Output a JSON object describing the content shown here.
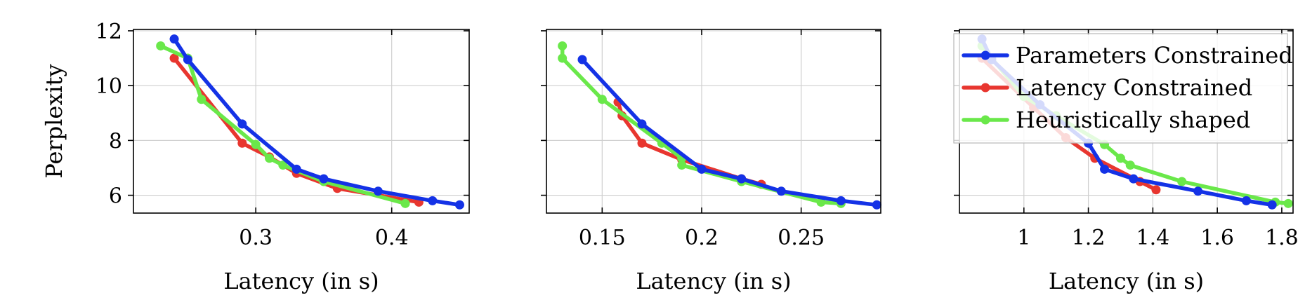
{
  "chart_data": [
    {
      "type": "line",
      "xlabel": "Latency (in s)",
      "ylabel": "Perplexity",
      "xlim": [
        0.21,
        0.457
      ],
      "ylim": [
        5.35,
        12.05
      ],
      "xticks": [
        0.3,
        0.4
      ],
      "xtick_labels": [
        "0.3",
        "0.4"
      ],
      "yticks": [
        6,
        8,
        10,
        12
      ],
      "ytick_labels": [
        "6",
        "8",
        "10",
        "12"
      ],
      "grid": true,
      "series": [
        {
          "name": "Latency Constrained",
          "color": "#e8362f",
          "x": [
            0.24,
            0.29,
            0.31,
            0.33,
            0.36,
            0.42
          ],
          "y": [
            11.0,
            7.9,
            7.4,
            6.8,
            6.25,
            5.75
          ]
        },
        {
          "name": "Heuristically shaped",
          "color": "#6ae84a",
          "x": [
            0.23,
            0.25,
            0.26,
            0.3,
            0.31,
            0.32,
            0.35,
            0.41
          ],
          "y": [
            11.45,
            11.0,
            9.5,
            7.85,
            7.35,
            7.1,
            6.5,
            5.7
          ]
        },
        {
          "name": "Parameters Constrained",
          "color": "#1432e6",
          "x": [
            0.24,
            0.25,
            0.29,
            0.33,
            0.35,
            0.39,
            0.43,
            0.45
          ],
          "y": [
            11.7,
            10.95,
            8.6,
            6.95,
            6.6,
            6.15,
            5.8,
            5.65
          ]
        }
      ]
    },
    {
      "type": "line",
      "xlabel": "Latency (in s)",
      "ylabel": "",
      "xlim": [
        0.122,
        0.29
      ],
      "ylim": [
        5.35,
        12.05
      ],
      "xticks": [
        0.15,
        0.2,
        0.25
      ],
      "xtick_labels": [
        "0.15",
        "0.2",
        "0.25"
      ],
      "yticks": [
        6,
        8,
        10,
        12
      ],
      "ytick_labels": [],
      "grid": true,
      "series": [
        {
          "name": "Latency Constrained",
          "color": "#e8362f",
          "x": [
            0.158,
            0.16,
            0.17,
            0.19,
            0.22,
            0.23
          ],
          "y": [
            9.4,
            8.9,
            7.9,
            7.3,
            6.6,
            6.4
          ]
        },
        {
          "name": "Heuristically shaped",
          "color": "#6ae84a",
          "x": [
            0.13,
            0.13,
            0.15,
            0.18,
            0.19,
            0.19,
            0.22,
            0.26,
            0.27
          ],
          "y": [
            11.45,
            11.0,
            9.5,
            7.9,
            7.35,
            7.1,
            6.5,
            5.75,
            5.7
          ]
        },
        {
          "name": "Parameters Constrained",
          "color": "#1432e6",
          "x": [
            0.14,
            0.17,
            0.2,
            0.22,
            0.24,
            0.27,
            0.288
          ],
          "y": [
            10.95,
            8.6,
            6.95,
            6.6,
            6.15,
            5.8,
            5.65
          ]
        }
      ]
    },
    {
      "type": "line",
      "xlabel": "Latency (in s)",
      "ylabel": "",
      "xlim": [
        0.8,
        1.835
      ],
      "ylim": [
        5.35,
        12.05
      ],
      "xticks": [
        1.0,
        1.2,
        1.4,
        1.6,
        1.8
      ],
      "xtick_labels": [
        "1",
        "1.2",
        "1.4",
        "1.6",
        "1.8"
      ],
      "yticks": [
        6,
        8,
        10,
        12
      ],
      "ytick_labels": [],
      "grid": true,
      "legend": {
        "position": "top-right",
        "entries": [
          "Parameters Constrained",
          "Latency Constrained",
          "Heuristically shaped"
        ]
      },
      "series": [
        {
          "name": "Latency Constrained",
          "color": "#e8362f",
          "x": [
            0.87,
            1.03,
            1.13,
            1.22,
            1.36,
            1.41
          ],
          "y": [
            11.0,
            9.2,
            8.1,
            7.35,
            6.5,
            6.2
          ]
        },
        {
          "name": "Heuristically shaped",
          "color": "#6ae84a",
          "x": [
            0.87,
            0.9,
            1.0,
            1.1,
            1.25,
            1.3,
            1.33,
            1.49,
            1.78,
            1.82
          ],
          "y": [
            11.45,
            11.0,
            9.6,
            8.9,
            7.85,
            7.35,
            7.1,
            6.5,
            5.75,
            5.7
          ]
        },
        {
          "name": "Parameters Constrained",
          "color": "#1432e6",
          "x": [
            0.87,
            0.9,
            1.05,
            1.2,
            1.25,
            1.34,
            1.54,
            1.69,
            1.77
          ],
          "y": [
            11.7,
            10.95,
            9.3,
            7.9,
            6.95,
            6.6,
            6.15,
            5.8,
            5.65
          ]
        }
      ]
    }
  ]
}
